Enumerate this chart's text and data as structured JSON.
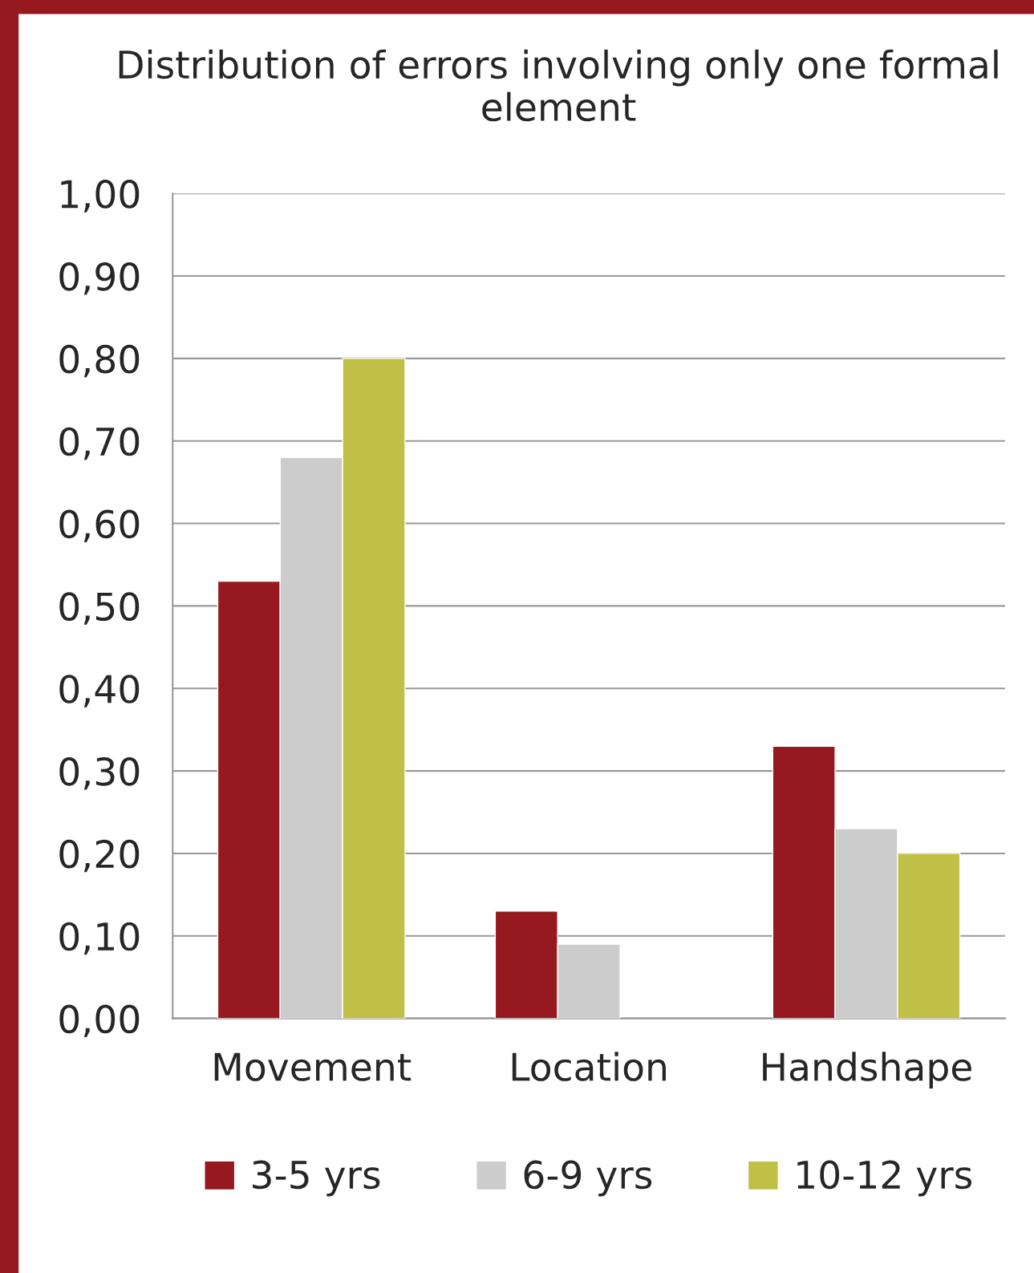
{
  "chart_data": {
    "type": "bar",
    "title": "Distribution of errors involving only one formal element",
    "categories": [
      "Movement",
      "Location",
      "Handshape"
    ],
    "series": [
      {
        "name": "3-5 yrs",
        "color": "#95191f",
        "values": [
          0.53,
          0.13,
          0.33
        ]
      },
      {
        "name": "6-9 yrs",
        "color": "#cccccc",
        "values": [
          0.68,
          0.09,
          0.23
        ]
      },
      {
        "name": "10-12 yrs",
        "color": "#c0c046",
        "values": [
          0.8,
          null,
          0.2
        ]
      }
    ],
    "ylim": [
      0,
      1
    ],
    "yticks": [
      {
        "value": 0,
        "label": "0,00"
      },
      {
        "value": 0.1,
        "label": "0,10"
      },
      {
        "value": 0.2,
        "label": "0,20"
      },
      {
        "value": 0.3,
        "label": "0,30"
      },
      {
        "value": 0.4,
        "label": "0,40"
      },
      {
        "value": 0.5,
        "label": "0,50"
      },
      {
        "value": 0.6,
        "label": "0,60"
      },
      {
        "value": 0.7,
        "label": "0,70"
      },
      {
        "value": 0.8,
        "label": "0,80"
      },
      {
        "value": 0.9,
        "label": "0,90"
      },
      {
        "value": 1,
        "label": "1,00"
      }
    ],
    "grid": "y",
    "legend": "bottom"
  }
}
